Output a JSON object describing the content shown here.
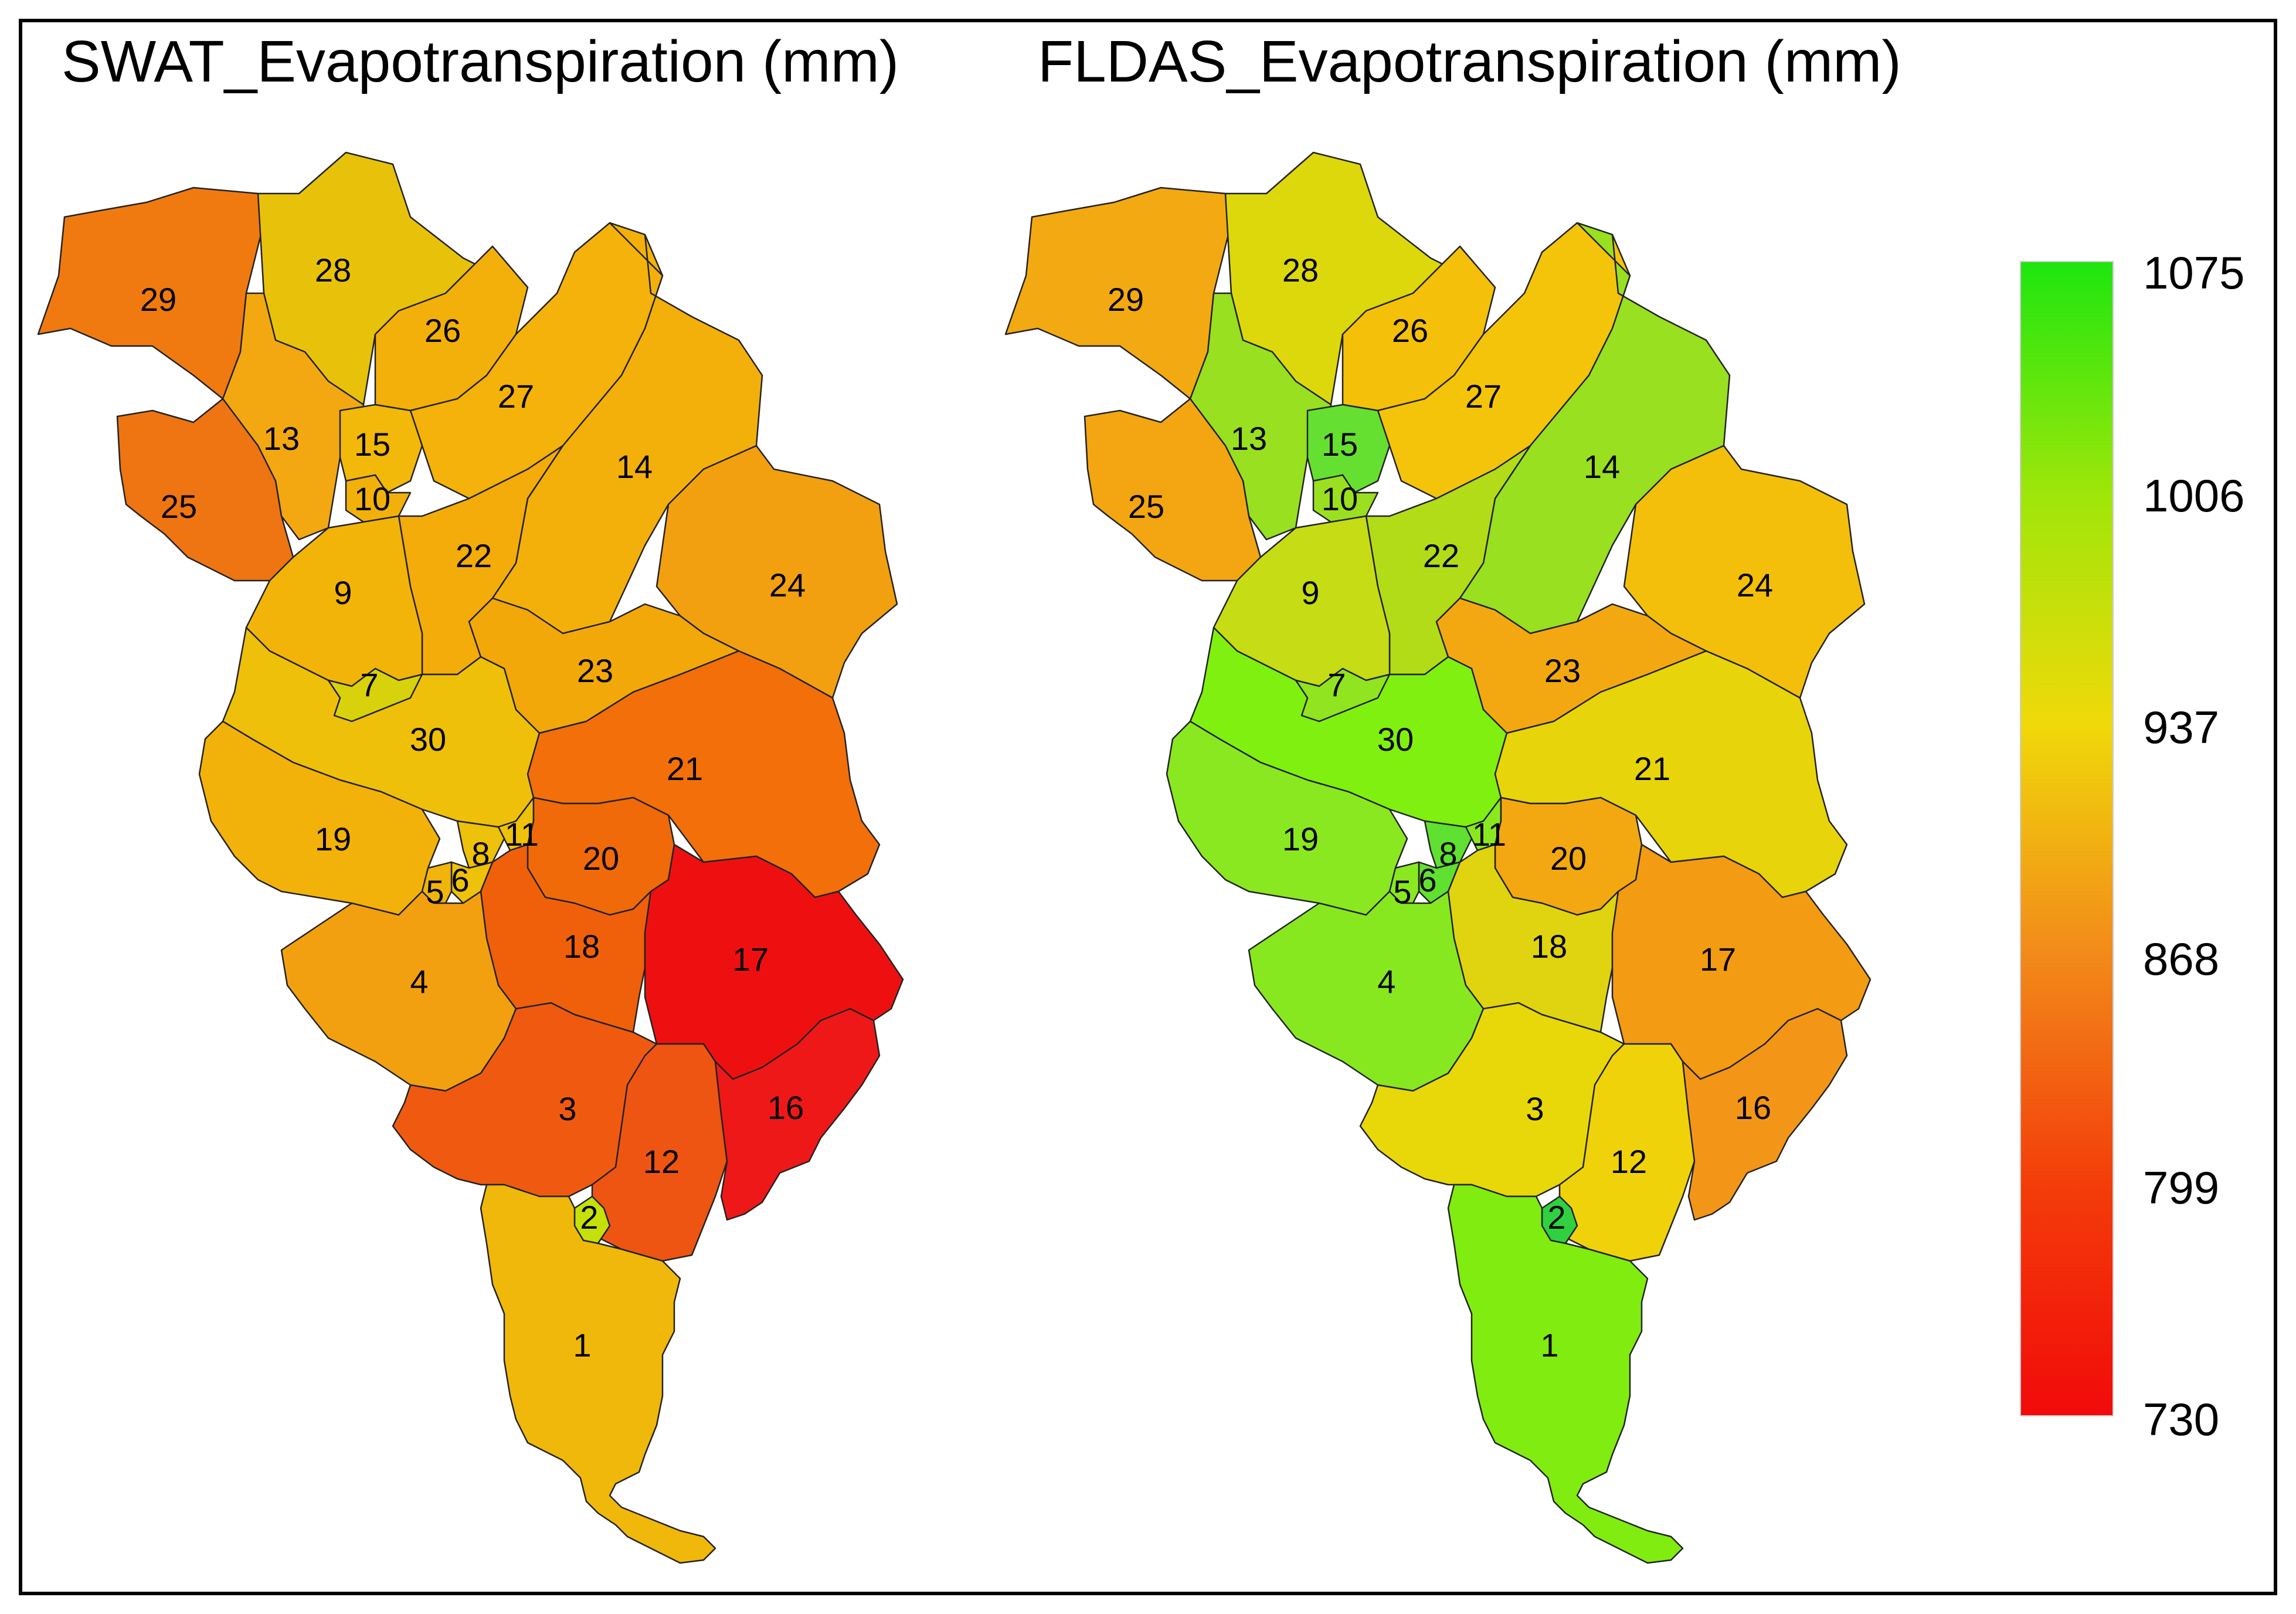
{
  "titles": {
    "left": "SWAT_Evapotranspiration (mm)",
    "right": "FLDAS_Evapotranspiration (mm)"
  },
  "legend": {
    "ticks": [
      "1075",
      "1006",
      "937",
      "868",
      "799",
      "730"
    ],
    "min": 730,
    "max": 1075,
    "colors": [
      "#1ee60f",
      "#9ee60a",
      "#f0d90a",
      "#f28a1a",
      "#f33d0a",
      "#f20a0a"
    ]
  },
  "maps": {
    "swat": {
      "subbasins": [
        {
          "id": "29",
          "color": "#f07a10"
        },
        {
          "id": "28",
          "color": "#e8c20a"
        },
        {
          "id": "26",
          "color": "#f4b00a"
        },
        {
          "id": "27",
          "color": "#f4b20a"
        },
        {
          "id": "13",
          "color": "#f3a812"
        },
        {
          "id": "15",
          "color": "#f2b80a"
        },
        {
          "id": "10",
          "color": "#f2b00a"
        },
        {
          "id": "25",
          "color": "#ee7512"
        },
        {
          "id": "14",
          "color": "#f4b00a"
        },
        {
          "id": "22",
          "color": "#f3ac0a"
        },
        {
          "id": "9",
          "color": "#f3b40a"
        },
        {
          "id": "24",
          "color": "#f2a010"
        },
        {
          "id": "23",
          "color": "#f3a80a"
        },
        {
          "id": "7",
          "color": "#d8d20c"
        },
        {
          "id": "30",
          "color": "#efc00a"
        },
        {
          "id": "21",
          "color": "#f26f0a"
        },
        {
          "id": "19",
          "color": "#f3b20a"
        },
        {
          "id": "11",
          "color": "#eec10a"
        },
        {
          "id": "8",
          "color": "#eec10a"
        },
        {
          "id": "6",
          "color": "#eec10a"
        },
        {
          "id": "5",
          "color": "#f0b40a"
        },
        {
          "id": "20",
          "color": "#f06a0a"
        },
        {
          "id": "18",
          "color": "#f0600a"
        },
        {
          "id": "4",
          "color": "#f3a010"
        },
        {
          "id": "17",
          "color": "#ee1010"
        },
        {
          "id": "3",
          "color": "#f05a10"
        },
        {
          "id": "12",
          "color": "#ee5512"
        },
        {
          "id": "16",
          "color": "#ee1818"
        },
        {
          "id": "2",
          "color": "#c6e00a"
        },
        {
          "id": "1",
          "color": "#f0b80a"
        }
      ]
    },
    "fldas": {
      "subbasins": [
        {
          "id": "29",
          "color": "#f3a912"
        },
        {
          "id": "28",
          "color": "#dcd80c"
        },
        {
          "id": "26",
          "color": "#f4c00a"
        },
        {
          "id": "27",
          "color": "#f4c40a"
        },
        {
          "id": "13",
          "color": "#98e020"
        },
        {
          "id": "15",
          "color": "#66e030"
        },
        {
          "id": "10",
          "color": "#9ae020"
        },
        {
          "id": "25",
          "color": "#f3a612"
        },
        {
          "id": "14",
          "color": "#98e020"
        },
        {
          "id": "22",
          "color": "#b2dc18"
        },
        {
          "id": "9",
          "color": "#c6dc14"
        },
        {
          "id": "24",
          "color": "#f4bf0a"
        },
        {
          "id": "23",
          "color": "#f3a812"
        },
        {
          "id": "7",
          "color": "#90e420"
        },
        {
          "id": "30",
          "color": "#80f010"
        },
        {
          "id": "21",
          "color": "#e8d40a"
        },
        {
          "id": "19",
          "color": "#8ae820"
        },
        {
          "id": "11",
          "color": "#8ae820"
        },
        {
          "id": "8",
          "color": "#60e030"
        },
        {
          "id": "6",
          "color": "#60e030"
        },
        {
          "id": "5",
          "color": "#8ae820"
        },
        {
          "id": "20",
          "color": "#f3a812"
        },
        {
          "id": "18",
          "color": "#e0d410"
        },
        {
          "id": "4",
          "color": "#88e820"
        },
        {
          "id": "17",
          "color": "#f39b12"
        },
        {
          "id": "3",
          "color": "#e8d80a"
        },
        {
          "id": "12",
          "color": "#f0d20a"
        },
        {
          "id": "16",
          "color": "#f39618"
        },
        {
          "id": "2",
          "color": "#30d040"
        },
        {
          "id": "1",
          "color": "#80ec10"
        }
      ]
    }
  }
}
